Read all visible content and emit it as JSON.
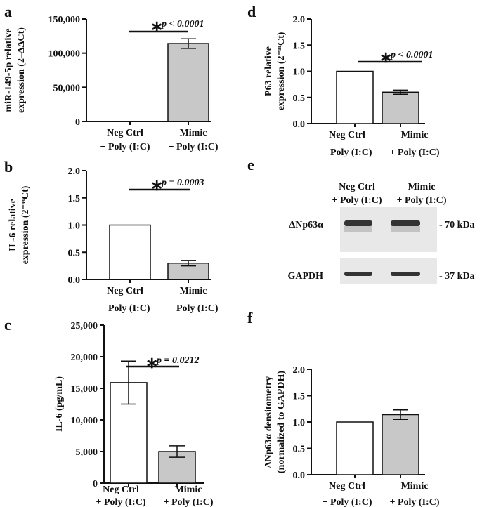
{
  "chart_data": [
    {
      "panel": "a",
      "type": "bar",
      "categories": [
        [
          "Neg Ctrl",
          "+ Poly (I:C)"
        ],
        [
          "Mimic",
          "+ Poly (I:C)"
        ]
      ],
      "values": [
        1,
        114000
      ],
      "errors": [
        0,
        7000
      ],
      "ylabel": [
        "miR-149-5p relative",
        "expression (2–ΔΔCt)"
      ],
      "ylim": [
        0,
        150000
      ],
      "yticks": [
        0,
        50000,
        100000,
        150000
      ],
      "ytick_labels": [
        "0",
        "50,000",
        "100,000",
        "150,000"
      ],
      "annotation": "p < 0.0001"
    },
    {
      "panel": "b",
      "type": "bar",
      "categories": [
        [
          "Neg Ctrl",
          "+ Poly (I:C)"
        ],
        [
          "Mimic",
          "+ Poly (I:C)"
        ]
      ],
      "values": [
        1.0,
        0.3
      ],
      "errors": [
        0,
        0.05
      ],
      "ylabel": [
        "IL-6 relative",
        "expression (2⁻ᶟᶟCt)"
      ],
      "ylim": [
        0,
        2
      ],
      "yticks": [
        0,
        0.5,
        1,
        1.5,
        2
      ],
      "ytick_labels": [
        "0.0",
        "0.5",
        "1.0",
        "1.5",
        "2.0"
      ],
      "annotation": "p = 0.0003"
    },
    {
      "panel": "c",
      "type": "bar",
      "categories": [
        [
          "Neg Ctrl",
          "+ Poly (I:C)"
        ],
        [
          "Mimic",
          "+ Poly (I:C)"
        ]
      ],
      "values": [
        15900,
        5000
      ],
      "errors": [
        3400,
        900
      ],
      "ylabel": [
        "IL-6 (pg/mL)"
      ],
      "ylim": [
        0,
        25000
      ],
      "yticks": [
        0,
        5000,
        10000,
        15000,
        20000,
        25000
      ],
      "ytick_labels": [
        "0",
        "5,000",
        "10,000",
        "15,000",
        "20,000",
        "25,000"
      ],
      "annotation": "p = 0.0212"
    },
    {
      "panel": "d",
      "type": "bar",
      "categories": [
        [
          "Neg Ctrl",
          "+ Poly (I:C)"
        ],
        [
          "Mimic",
          "+ Poly (I:C)"
        ]
      ],
      "values": [
        1.0,
        0.6
      ],
      "errors": [
        0,
        0.04
      ],
      "ylabel": [
        "P63 relative",
        "expression (2⁻ᶟᶟCt)"
      ],
      "ylim": [
        0,
        2
      ],
      "yticks": [
        0,
        0.5,
        1,
        1.5,
        2
      ],
      "ytick_labels": [
        "0.0",
        "0.5",
        "1.0",
        "1.5",
        "2.0"
      ],
      "annotation": "p < 0.0001"
    },
    {
      "panel": "f",
      "type": "bar",
      "categories": [
        [
          "Neg Ctrl",
          "+ Poly (I:C)"
        ],
        [
          "Mimic",
          "+ Poly (I:C)"
        ]
      ],
      "values": [
        1.0,
        1.14
      ],
      "errors": [
        0,
        0.09
      ],
      "ylabel": [
        "ΔNp63α densitometry",
        "(normalized to GAPDH)"
      ],
      "ylim": [
        0,
        2
      ],
      "yticks": [
        0,
        0.5,
        1,
        1.5,
        2
      ],
      "ytick_labels": [
        "0.0",
        "0.5",
        "1.0",
        "1.5",
        "2.0"
      ],
      "annotation": ""
    }
  ],
  "blot": {
    "panel": "e",
    "lanes": [
      [
        "Neg Ctrl",
        "+ Poly (I:C)"
      ],
      [
        "Mimic",
        "+ Poly (I:C)"
      ]
    ],
    "rows": [
      {
        "label": "ΔNp63α",
        "marker": "- 70 kDa"
      },
      {
        "label": "GAPDH",
        "marker": "- 37 kDa"
      }
    ]
  },
  "colors": {
    "neg": "#ffffff",
    "mimic": "#c8c8c8",
    "ink": "#111111"
  },
  "star": "∗"
}
